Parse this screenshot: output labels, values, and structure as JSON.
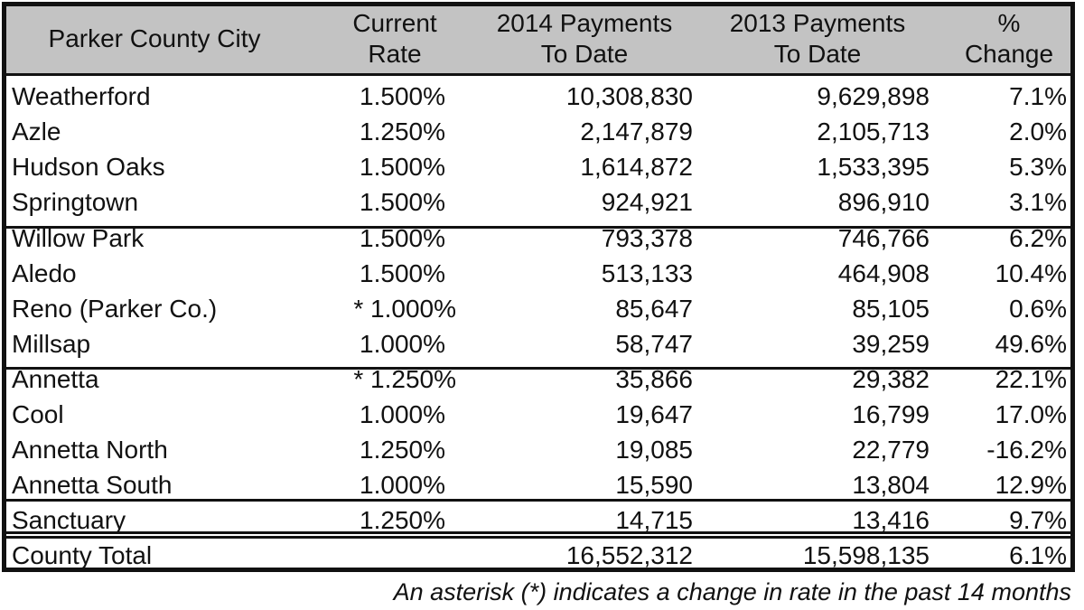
{
  "table": {
    "headers": {
      "city": "Parker County City",
      "rate_line1": "Current",
      "rate_line2": "Rate",
      "p2014_line1": "2014 Payments",
      "p2014_line2": "To Date",
      "p2013_line1": "2013 Payments",
      "p2013_line2": "To Date",
      "pct_line1": "%",
      "pct_line2": "Change"
    },
    "rows": [
      {
        "city": "Weatherford",
        "rate": "1.500%",
        "p2014": "10,308,830",
        "p2013": "9,629,898",
        "pct": "7.1%"
      },
      {
        "city": "Azle",
        "rate": "1.250%",
        "p2014": "2,147,879",
        "p2013": "2,105,713",
        "pct": "2.0%"
      },
      {
        "city": "Hudson Oaks",
        "rate": "1.500%",
        "p2014": "1,614,872",
        "p2013": "1,533,395",
        "pct": "5.3%"
      },
      {
        "city": "Springtown",
        "rate": "1.500%",
        "p2014": "924,921",
        "p2013": "896,910",
        "pct": "3.1%"
      },
      {
        "city": "Willow Park",
        "rate": "1.500%",
        "p2014": "793,378",
        "p2013": "746,766",
        "pct": "6.2%"
      },
      {
        "city": "Aledo",
        "rate": "1.500%",
        "p2014": "513,133",
        "p2013": "464,908",
        "pct": "10.4%"
      },
      {
        "city": "Reno (Parker Co.)",
        "rate": "* 1.000%",
        "p2014": "85,647",
        "p2013": "85,105",
        "pct": "0.6%"
      },
      {
        "city": "Millsap",
        "rate": "1.000%",
        "p2014": "58,747",
        "p2013": "39,259",
        "pct": "49.6%"
      },
      {
        "city": "Annetta",
        "rate": "* 1.250%",
        "p2014": "35,866",
        "p2013": "29,382",
        "pct": "22.1%"
      },
      {
        "city": "Cool",
        "rate": "1.000%",
        "p2014": "19,647",
        "p2013": "16,799",
        "pct": "17.0%"
      },
      {
        "city": "Annetta North",
        "rate": "1.250%",
        "p2014": "19,085",
        "p2013": "22,779",
        "pct": "-16.2%"
      },
      {
        "city": "Annetta South",
        "rate": "1.000%",
        "p2014": "15,590",
        "p2013": "13,804",
        "pct": "12.9%"
      },
      {
        "city": "Sanctuary",
        "rate": "1.250%",
        "p2014": "14,715",
        "p2013": "13,416",
        "pct": "9.7%"
      }
    ],
    "total": {
      "city": "County Total",
      "rate": "",
      "p2014": "16,552,312",
      "p2013": "15,598,135",
      "pct": "6.1%"
    }
  },
  "footnote": "An asterisk (*) indicates a change in rate in the past 14 months"
}
